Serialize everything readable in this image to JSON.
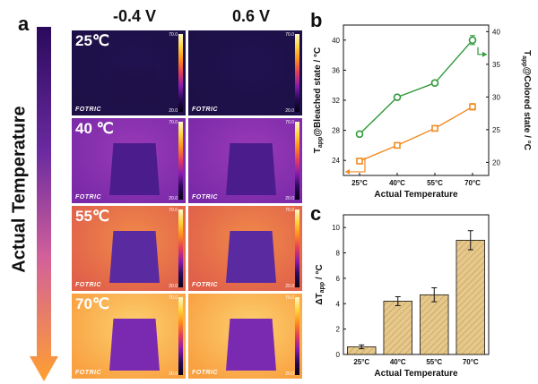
{
  "panel_a": {
    "letter": "a",
    "arrow_label": "Actual Temperature",
    "columns": [
      "-0.4 V",
      "0.6 V"
    ],
    "brand": "FOTRIC",
    "rows": [
      {
        "temp": "25℃",
        "scale_max": "70.0",
        "scale_min": "20.0",
        "bg": [
          "#1d1046",
          "#201250"
        ],
        "sample": "#1f1048"
      },
      {
        "temp": "40 ℃",
        "scale_max": "70.0",
        "scale_min": "20.0",
        "bg": [
          "#7a2aa8",
          "#9a3ab8"
        ],
        "sample": "#4a1c8c"
      },
      {
        "temp": "55℃",
        "scale_max": "70.0",
        "scale_min": "20.0",
        "bg": [
          "#e0604a",
          "#f08a4a"
        ],
        "sample": "#5a2aa0"
      },
      {
        "temp": "70℃",
        "scale_max": "70.0",
        "scale_min": "20.0",
        "bg": [
          "#f9a040",
          "#fcd070"
        ],
        "sample": "#7a2ab0"
      }
    ]
  },
  "chart_data": [
    {
      "panel": "b",
      "type": "line",
      "categories": [
        "25°C",
        "40°C",
        "55°C",
        "70°C"
      ],
      "xlabel": "Actual Temperature",
      "ylabel_left": "T_app@Bleached state / °C",
      "ylabel_right": "T_app@Colored state / °C",
      "ylim_left": [
        22,
        42
      ],
      "yticks_left": [
        24,
        28,
        32,
        36,
        40
      ],
      "ylim_right": [
        18,
        41
      ],
      "yticks_right": [
        20,
        25,
        30,
        35,
        40
      ],
      "series": [
        {
          "axis": "left",
          "color": "#2e9a3a",
          "marker": "circle",
          "values": [
            27.5,
            32.4,
            34.3,
            40.0
          ],
          "errors": [
            0.3,
            0.3,
            0.3,
            0.6
          ]
        },
        {
          "axis": "right",
          "color": "#f28a22",
          "marker": "square",
          "values": [
            20.2,
            22.6,
            25.2,
            28.5
          ],
          "errors": [
            0.3,
            0.3,
            0.3,
            0.5
          ]
        }
      ],
      "grid": false
    },
    {
      "panel": "c",
      "type": "bar",
      "categories": [
        "25°C",
        "40°C",
        "55°C",
        "70°C"
      ],
      "values": [
        0.6,
        4.2,
        4.7,
        9.0
      ],
      "errors": [
        0.15,
        0.35,
        0.55,
        0.75
      ],
      "xlabel": "Actual Temperature",
      "ylabel": "ΔT_app / °C",
      "ylim": [
        0,
        11
      ],
      "yticks": [
        0,
        2,
        4,
        6,
        8,
        10
      ],
      "bar_color": "#e6c88c",
      "hatch_color": "#b8934a",
      "grid": false
    }
  ]
}
